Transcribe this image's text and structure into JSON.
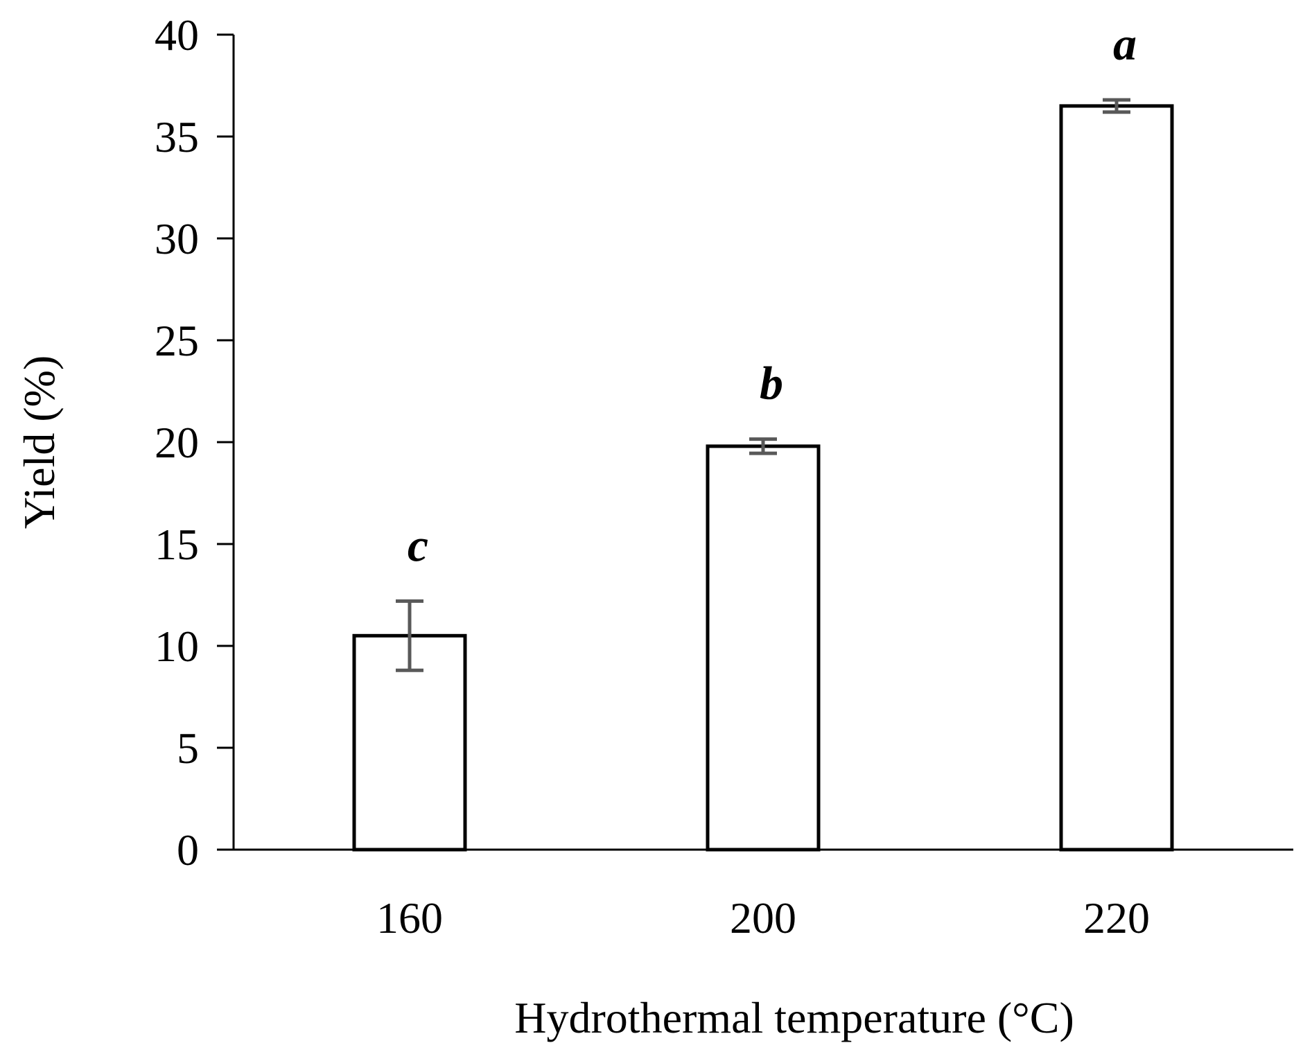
{
  "chart_data": {
    "type": "bar",
    "categories": [
      "160",
      "200",
      "220"
    ],
    "values": [
      10.5,
      19.8,
      36.5
    ],
    "error": [
      1.7,
      0.35,
      0.3
    ],
    "significance_letters": [
      "c",
      "b",
      "a"
    ],
    "xlabel": "Hydrothermal temperature (°C)",
    "ylabel": "Yield (%)",
    "ylim": [
      0,
      40
    ],
    "yticks": [
      0,
      5,
      10,
      15,
      20,
      25,
      30,
      35,
      40
    ],
    "grid": false,
    "legend": "none",
    "colors": {
      "bar_fill": "#ffffff",
      "bar_stroke": "#000000",
      "error_bar": "#595959",
      "axis": "#000000"
    }
  }
}
